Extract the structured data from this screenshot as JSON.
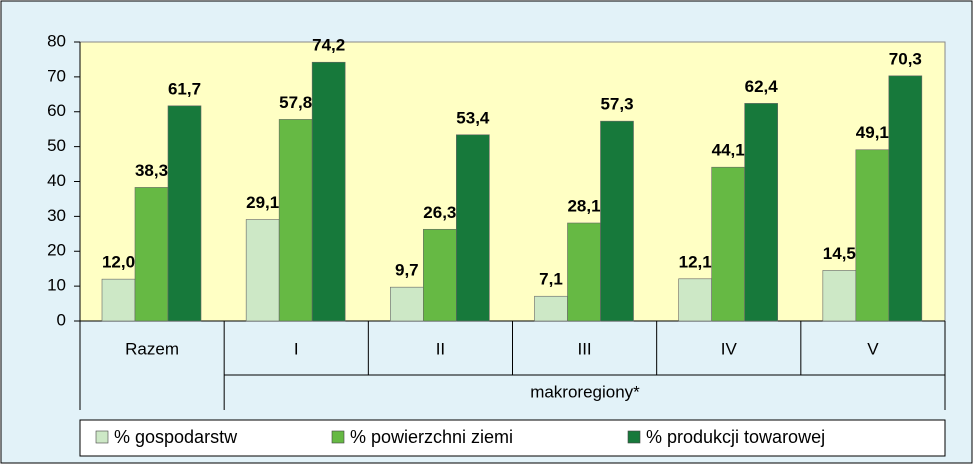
{
  "chart_data": {
    "type": "bar",
    "categories": [
      "Razem",
      "I",
      "II",
      "III",
      "IV",
      "V"
    ],
    "group_label": "makroregiony*",
    "series": [
      {
        "name": "% gospodarstw",
        "color": "#cde8c6",
        "values": [
          12.0,
          29.1,
          9.7,
          7.1,
          12.1,
          14.5
        ],
        "value_labels": [
          "12,0",
          "29,1",
          "9,7",
          "7,1",
          "12,1",
          "14,5"
        ]
      },
      {
        "name": "% powierzchni ziemi",
        "color": "#66b944",
        "values": [
          38.3,
          57.8,
          26.3,
          28.1,
          44.1,
          49.1
        ],
        "value_labels": [
          "38,3",
          "57,8",
          "26,3",
          "28,1",
          "44,1",
          "49,1"
        ]
      },
      {
        "name": "% produkcji towarowej",
        "color": "#17793b",
        "values": [
          61.7,
          74.2,
          53.4,
          57.3,
          62.4,
          70.3
        ],
        "value_labels": [
          "61,7",
          "74,2",
          "53,4",
          "57,3",
          "62,4",
          "70,3"
        ]
      }
    ],
    "ylim": [
      0,
      80
    ],
    "yticks": [
      0,
      10,
      20,
      30,
      40,
      50,
      60,
      70,
      80
    ],
    "grid": false
  }
}
